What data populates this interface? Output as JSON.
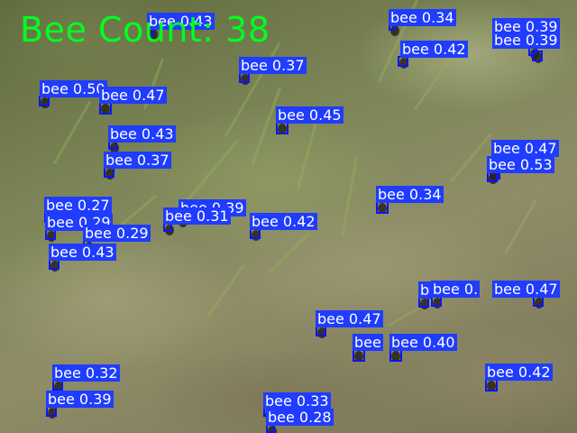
{
  "overlay": {
    "count_text": "Bee Count: 38",
    "count_color": "#00ff22",
    "box_color": "#0a14ff",
    "label_background": "#1f3cff",
    "label_text_color": "#ffffff"
  },
  "detections": [
    {
      "label": "bee 0.43"
    },
    {
      "label": "bee 0.34"
    },
    {
      "label": "bee 0.39"
    },
    {
      "label": "bee 0.39"
    },
    {
      "label": "bee 0.42"
    },
    {
      "label": "bee 0.37"
    },
    {
      "label": "bee 0.50"
    },
    {
      "label": "bee 0.47"
    },
    {
      "label": "bee 0.45"
    },
    {
      "label": "bee 0.43"
    },
    {
      "label": "bee 0.37"
    },
    {
      "label": "bee 0.47"
    },
    {
      "label": "bee 0.53"
    },
    {
      "label": "bee 0.34"
    },
    {
      "label": "bee 0.27"
    },
    {
      "label": "bee 0.39"
    },
    {
      "label": "bee 0.31"
    },
    {
      "label": "bee 0.29"
    },
    {
      "label": "bee 0.29"
    },
    {
      "label": "bee 0.43"
    },
    {
      "label": "bee 0.42"
    },
    {
      "label": "bee 0."
    },
    {
      "label": "bee 0.47"
    },
    {
      "label": "b"
    },
    {
      "label": "bee 0.47"
    },
    {
      "label": "bee"
    },
    {
      "label": "bee 0.40"
    },
    {
      "label": "bee 0.32"
    },
    {
      "label": "bee 0.42"
    },
    {
      "label": "bee 0.39"
    },
    {
      "label": "bee 0.33"
    },
    {
      "label": "bee 0.28"
    }
  ]
}
